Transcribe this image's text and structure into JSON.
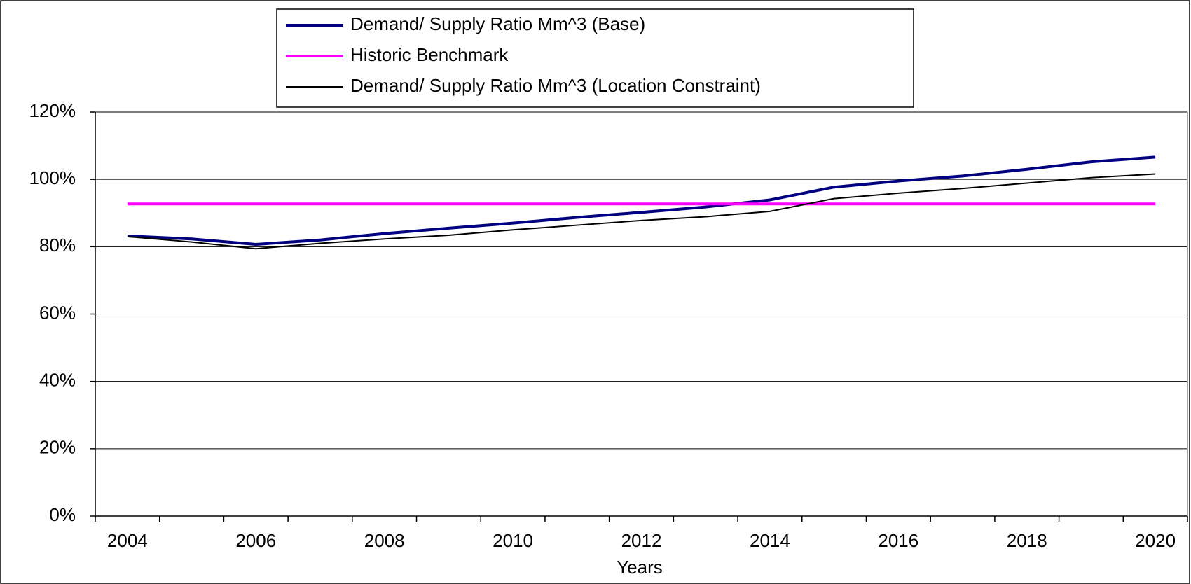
{
  "chart_data": {
    "type": "line",
    "x_label": "Years",
    "categories": [
      "2004",
      null,
      "2006",
      null,
      "2008",
      null,
      "2010",
      null,
      "2012",
      null,
      "2014",
      null,
      "2016",
      null,
      "2018",
      null,
      "2020"
    ],
    "series": [
      {
        "name": "Demand/ Supply Ratio Mm^3 (Base)",
        "color": "#000080",
        "width": 4,
        "values": [
          83.2,
          82.3,
          80.7,
          82,
          83.9,
          85.5,
          87,
          88.7,
          90.2,
          91.8,
          93.9,
          97.7,
          99.5,
          101,
          103,
          105.2,
          106.6
        ]
      },
      {
        "name": "Historic Benchmark",
        "color": "#ff00ff",
        "width": 4,
        "values": [
          92.7,
          92.7,
          92.7,
          92.7,
          92.7,
          92.7,
          92.7,
          92.7,
          92.7,
          92.7,
          92.7,
          92.7,
          92.7,
          92.7,
          92.7,
          92.7,
          92.7
        ]
      },
      {
        "name": "Demand/ Supply Ratio Mm^3 (Location Constraint)",
        "color": "#000000",
        "width": 2,
        "values": [
          83,
          81.4,
          79.4,
          81,
          82.3,
          83.4,
          85,
          86.4,
          87.8,
          88.9,
          90.5,
          94.3,
          95.9,
          97.3,
          98.9,
          100.5,
          101.6
        ]
      }
    ],
    "ylim": [
      0,
      120
    ],
    "yticks": [
      {
        "value": 0,
        "label": "0%"
      },
      {
        "value": 20,
        "label": "20%"
      },
      {
        "value": 40,
        "label": "40%"
      },
      {
        "value": 60,
        "label": "60%"
      },
      {
        "value": 80,
        "label": "80%"
      },
      {
        "value": 100,
        "label": "100%"
      },
      {
        "value": 120,
        "label": "120%"
      }
    ],
    "grid": true
  }
}
